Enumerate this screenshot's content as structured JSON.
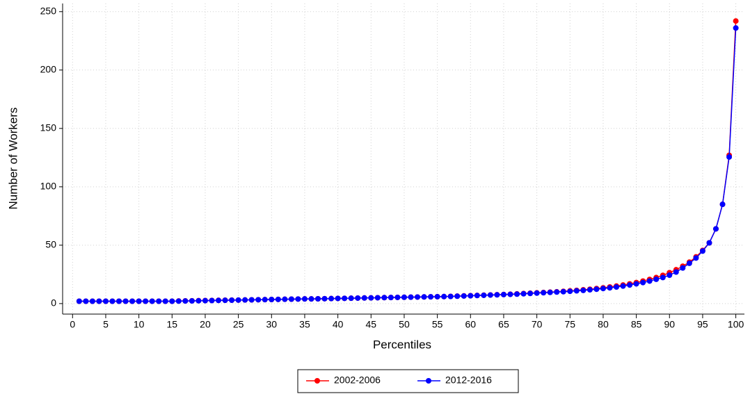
{
  "chart_data": {
    "type": "line",
    "x_label": "Percentiles",
    "y_label": "Number of Workers",
    "x": [
      1,
      2,
      3,
      4,
      5,
      6,
      7,
      8,
      9,
      10,
      11,
      12,
      13,
      14,
      15,
      16,
      17,
      18,
      19,
      20,
      21,
      22,
      23,
      24,
      25,
      26,
      27,
      28,
      29,
      30,
      31,
      32,
      33,
      34,
      35,
      36,
      37,
      38,
      39,
      40,
      41,
      42,
      43,
      44,
      45,
      46,
      47,
      48,
      49,
      50,
      51,
      52,
      53,
      54,
      55,
      56,
      57,
      58,
      59,
      60,
      61,
      62,
      63,
      64,
      65,
      66,
      67,
      68,
      69,
      70,
      71,
      72,
      73,
      74,
      75,
      76,
      77,
      78,
      79,
      80,
      81,
      82,
      83,
      84,
      85,
      86,
      87,
      88,
      89,
      90,
      91,
      92,
      93,
      94,
      95,
      96,
      97,
      98,
      99,
      100
    ],
    "series": [
      {
        "name": "2002-2006",
        "color": "#ff0000",
        "values": [
          2,
          2,
          2,
          2,
          2,
          2,
          2,
          2,
          2,
          2,
          2,
          2,
          2,
          2,
          2,
          2.2,
          2.3,
          2.4,
          2.5,
          2.6,
          2.7,
          2.8,
          2.9,
          3,
          3,
          3.1,
          3.2,
          3.3,
          3.4,
          3.5,
          3.6,
          3.7,
          3.8,
          3.9,
          4,
          4,
          4.1,
          4.2,
          4.3,
          4.4,
          4.5,
          4.6,
          4.7,
          4.8,
          4.9,
          5,
          5.1,
          5.2,
          5.3,
          5.4,
          5.5,
          5.6,
          5.7,
          5.8,
          5.9,
          6,
          6.2,
          6.4,
          6.6,
          6.8,
          7,
          7.2,
          7.4,
          7.6,
          7.8,
          8,
          8.3,
          8.6,
          8.9,
          9.2,
          9.5,
          9.8,
          10.1,
          10.5,
          10.9,
          11.3,
          11.8,
          12.3,
          12.9,
          13.5,
          14.2,
          15,
          15.9,
          16.9,
          18,
          19.3,
          20.7,
          22.3,
          24.2,
          26.5,
          29,
          32,
          35.5,
          40,
          45.5,
          52,
          64,
          85,
          127,
          242
        ]
      },
      {
        "name": "2012-2016",
        "color": "#0000ff",
        "values": [
          2,
          2,
          2,
          2,
          2,
          2,
          2,
          2,
          2,
          2,
          2,
          2,
          2,
          2,
          2,
          2.1,
          2.2,
          2.3,
          2.4,
          2.5,
          2.6,
          2.7,
          2.8,
          2.9,
          3,
          3.1,
          3.2,
          3.3,
          3.4,
          3.5,
          3.6,
          3.7,
          3.8,
          3.9,
          4,
          4,
          4.1,
          4.2,
          4.3,
          4.4,
          4.5,
          4.6,
          4.7,
          4.8,
          4.9,
          5,
          5.1,
          5.2,
          5.3,
          5.4,
          5.5,
          5.6,
          5.7,
          5.8,
          5.9,
          6,
          6.1,
          6.3,
          6.5,
          6.7,
          6.9,
          7.1,
          7.3,
          7.5,
          7.7,
          7.9,
          8.1,
          8.4,
          8.7,
          9,
          9.3,
          9.6,
          9.9,
          10.2,
          10.5,
          10.9,
          11.3,
          11.8,
          12.3,
          12.9,
          13.5,
          14.2,
          15,
          15.9,
          16.9,
          18,
          19.3,
          20.8,
          22.3,
          24.3,
          27,
          30.5,
          34.5,
          39,
          45,
          52,
          64,
          85,
          125.5,
          236
        ]
      }
    ],
    "xlim": [
      -1.5,
      101.3
    ],
    "ylim": [
      -9,
      257
    ],
    "xticks": [
      0,
      5,
      10,
      15,
      20,
      25,
      30,
      35,
      40,
      45,
      50,
      55,
      60,
      65,
      70,
      75,
      80,
      85,
      90,
      95,
      100
    ],
    "yticks": [
      0,
      50,
      100,
      150,
      200,
      250
    ],
    "grid": true,
    "legend": "bottom"
  }
}
